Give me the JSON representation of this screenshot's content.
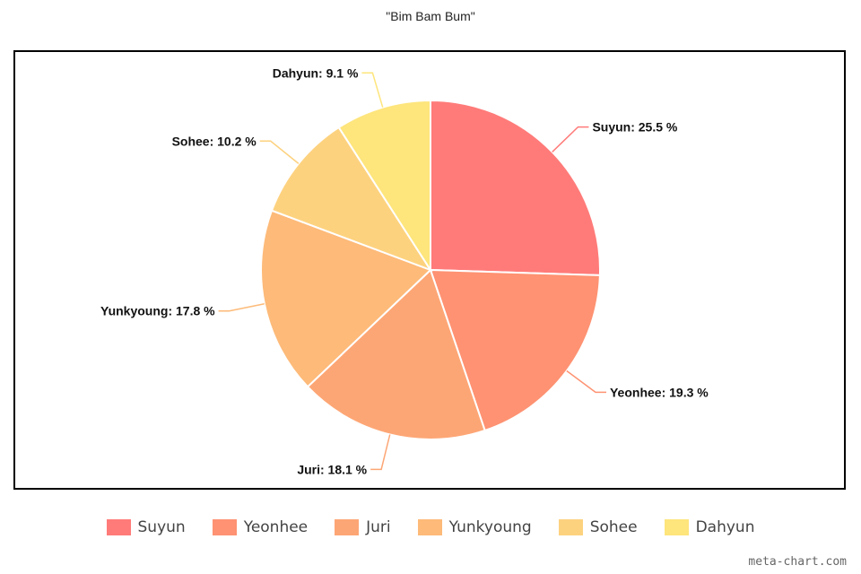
{
  "chart_data": {
    "type": "pie",
    "title": "\"Bim Bam Bum\"",
    "legend_position": "bottom",
    "slices": [
      {
        "name": "Suyun",
        "value": 25.5,
        "label": "Suyun: 25.5 %",
        "color": "#FF7B79"
      },
      {
        "name": "Yeonhee",
        "value": 19.3,
        "label": "Yeonhee: 19.3 %",
        "color": "#FE9272"
      },
      {
        "name": "Juri",
        "value": 18.1,
        "label": "Juri: 18.1 %",
        "color": "#FDA675"
      },
      {
        "name": "Yunkyoung",
        "value": 17.8,
        "label": "Yunkyoung: 17.8 %",
        "color": "#FDBA79"
      },
      {
        "name": "Sohee",
        "value": 10.2,
        "label": "Sohee: 10.2 %",
        "color": "#FDD27F"
      },
      {
        "name": "Dahyun",
        "value": 9.1,
        "label": "Dahyun: 9.1 %",
        "color": "#FEE57C"
      }
    ]
  },
  "watermark": "meta-chart.com"
}
